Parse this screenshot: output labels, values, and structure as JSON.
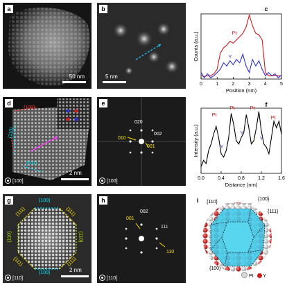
{
  "panels": {
    "a": {
      "label": "a",
      "scale_text": "50 nm"
    },
    "b": {
      "label": "b",
      "scale_text": "5 nm"
    },
    "c": {
      "label": "c",
      "chart_data": {
        "type": "line",
        "xlabel": "Position (nm)",
        "ylabel": "Counts (a.u.)",
        "xlim": [
          0,
          5
        ],
        "x_ticks": [
          "0",
          "1",
          "2",
          "3",
          "4",
          "5"
        ],
        "series": [
          {
            "name": "Pt",
            "color": "#d7191c",
            "x": [
              0.0,
              0.2,
              0.4,
              0.6,
              0.8,
              1.0,
              1.2,
              1.4,
              1.6,
              1.8,
              2.0,
              2.2,
              2.4,
              2.6,
              2.8,
              3.0,
              3.2,
              3.4,
              3.6,
              3.8,
              4.0,
              4.2,
              4.4,
              4.6,
              4.8,
              5.0
            ],
            "y": [
              0.05,
              0.04,
              0.05,
              0.05,
              0.08,
              0.15,
              0.4,
              0.48,
              0.52,
              0.58,
              0.55,
              0.6,
              0.65,
              0.7,
              0.8,
              0.98,
              0.82,
              0.7,
              0.68,
              0.6,
              0.1,
              0.05,
              0.05,
              0.06,
              0.05,
              0.05
            ]
          },
          {
            "name": "Y",
            "color": "#2b2fd2",
            "x": [
              0.0,
              0.2,
              0.4,
              0.6,
              0.8,
              1.0,
              1.2,
              1.4,
              1.6,
              1.8,
              2.0,
              2.2,
              2.4,
              2.6,
              2.8,
              3.0,
              3.2,
              3.4,
              3.6,
              3.8,
              4.0,
              4.2,
              4.4,
              4.6,
              4.8,
              5.0
            ],
            "y": [
              0.1,
              0.02,
              0.08,
              0.02,
              0.05,
              0.1,
              0.15,
              0.25,
              0.2,
              0.28,
              0.22,
              0.3,
              0.25,
              0.38,
              0.2,
              0.1,
              0.3,
              0.2,
              0.28,
              0.15,
              0.05,
              0.1,
              0.05,
              0.08,
              0.02,
              0.06
            ]
          }
        ],
        "annotations": [
          "Pt",
          "Y"
        ]
      }
    },
    "d": {
      "label": "d",
      "scale_text": "2 nm",
      "zone_text": "[100]",
      "facets": [
        "{100}",
        "{110}",
        "{011}"
      ]
    },
    "e": {
      "label": "e",
      "zone_text": "[100]",
      "spots": [
        "020",
        "002",
        "010",
        "001"
      ]
    },
    "f": {
      "label": "f",
      "chart_data": {
        "type": "line",
        "xlabel": "Distance (nm)",
        "ylabel": "Intensity (a.u.)",
        "xlim": [
          0,
          1.6
        ],
        "x_ticks": [
          "0.0",
          "0.4",
          "0.8",
          "1.2",
          "1.6"
        ],
        "series": [
          {
            "color": "#000000",
            "x": [
              0.0,
              0.05,
              0.1,
              0.15,
              0.2,
              0.25,
              0.3,
              0.35,
              0.4,
              0.45,
              0.5,
              0.55,
              0.6,
              0.65,
              0.7,
              0.75,
              0.8,
              0.85,
              0.9,
              0.95,
              1.0,
              1.05,
              1.1,
              1.15,
              1.2,
              1.25,
              1.3,
              1.35,
              1.4,
              1.45,
              1.5,
              1.55,
              1.6
            ],
            "y": [
              0.1,
              0.2,
              0.15,
              0.35,
              0.45,
              0.6,
              0.72,
              0.55,
              0.3,
              0.25,
              0.35,
              0.55,
              0.92,
              0.75,
              0.5,
              0.45,
              0.55,
              0.62,
              0.9,
              0.7,
              0.45,
              0.5,
              0.7,
              0.95,
              0.65,
              0.45,
              0.4,
              0.3,
              0.55,
              0.8,
              0.7,
              0.8,
              0.6
            ]
          }
        ],
        "annotations": [
          "Pt",
          "Pt",
          "Pt",
          "Pt",
          "Y",
          "Y",
          "Y",
          "Y"
        ]
      }
    },
    "g": {
      "label": "g",
      "scale_text": "2 nm",
      "zone_text": "[110]",
      "facets": [
        "{100}",
        "{111}",
        "{111}",
        "{110}",
        "{110}",
        "{111}",
        "{111}",
        "{100}"
      ]
    },
    "h": {
      "label": "h",
      "zone_text": "[110]",
      "spots": [
        "002",
        "001",
        "111",
        "110"
      ]
    },
    "i": {
      "label": "i",
      "facets": [
        "{110}",
        "{100}",
        "{111}",
        "{100}"
      ],
      "legend": [
        "Pt",
        "Y"
      ],
      "colors": {
        "pt": "#d9d9d9",
        "y": "#d11a1a",
        "facet": "#3fc8e8"
      }
    }
  }
}
